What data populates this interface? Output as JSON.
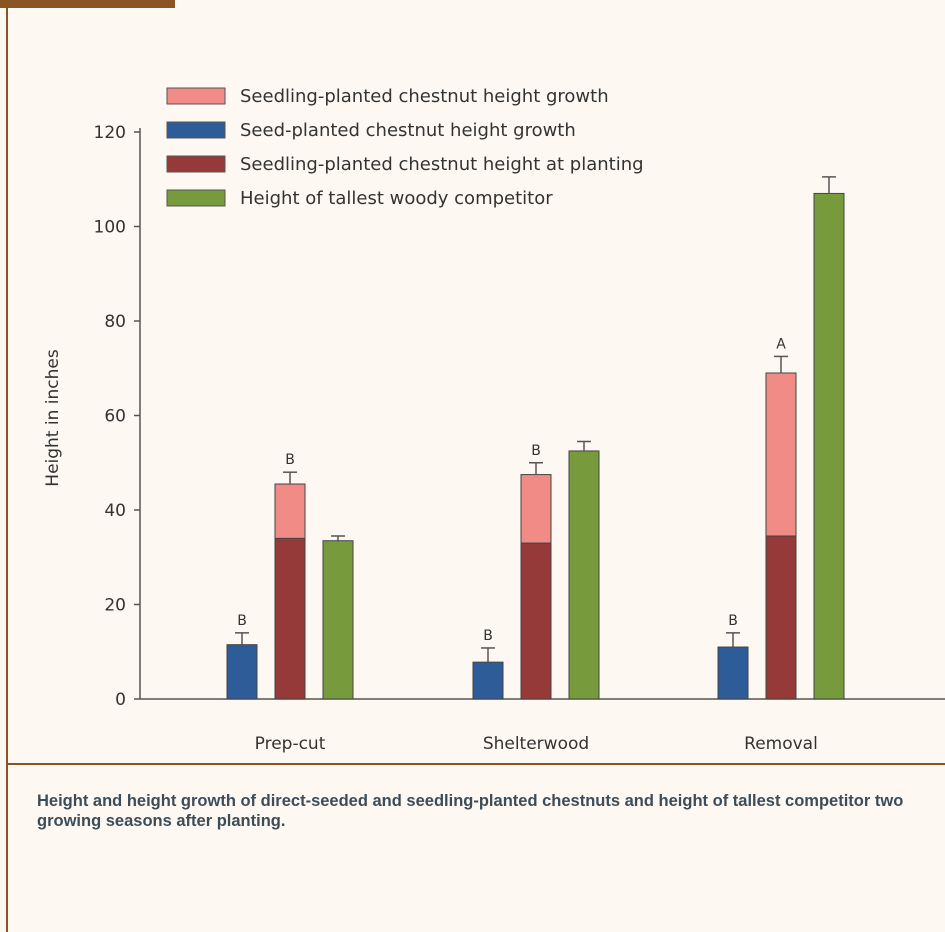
{
  "chart_data": {
    "type": "bar",
    "categories": [
      "Prep-cut",
      "Shelterwood",
      "Removal"
    ],
    "ylabel": "Height in inches",
    "xlabel": "",
    "ylim": [
      0,
      120
    ],
    "yticks": [
      0,
      20,
      40,
      60,
      80,
      100,
      120
    ],
    "legend_position": "top-left",
    "series": [
      {
        "name": "Seed-planted chestnut height growth",
        "color": "#2e5c99",
        "values": [
          11.5,
          7.8,
          11
        ],
        "error": [
          2.5,
          3,
          3
        ],
        "letters": [
          "B",
          "B",
          "B"
        ]
      },
      {
        "name": "Seedling-planted chestnut height at planting",
        "color": "#953a38",
        "values": [
          34,
          33,
          34.5
        ],
        "stack_group": "seedling"
      },
      {
        "name": "Seedling-planted chestnut height growth",
        "color": "#f08b86",
        "values": [
          11.5,
          14.5,
          34.5
        ],
        "stack_group": "seedling",
        "error": [
          2.5,
          2.5,
          3.5
        ],
        "letters": [
          "B",
          "B",
          "A"
        ]
      },
      {
        "name": "Height of tallest woody competitor",
        "color": "#779a3c",
        "values": [
          33.5,
          52.5,
          107
        ],
        "error": [
          1,
          2,
          3.5
        ]
      }
    ],
    "legend_order": [
      "Seedling-planted chestnut height growth",
      "Seed-planted chestnut height growth",
      "Seedling-planted chestnut height at planting",
      "Height of tallest woody competitor"
    ]
  },
  "caption": "Height and height growth of direct-seeded and seedling-planted chestnuts and height of tallest competitor two growing seasons after planting."
}
